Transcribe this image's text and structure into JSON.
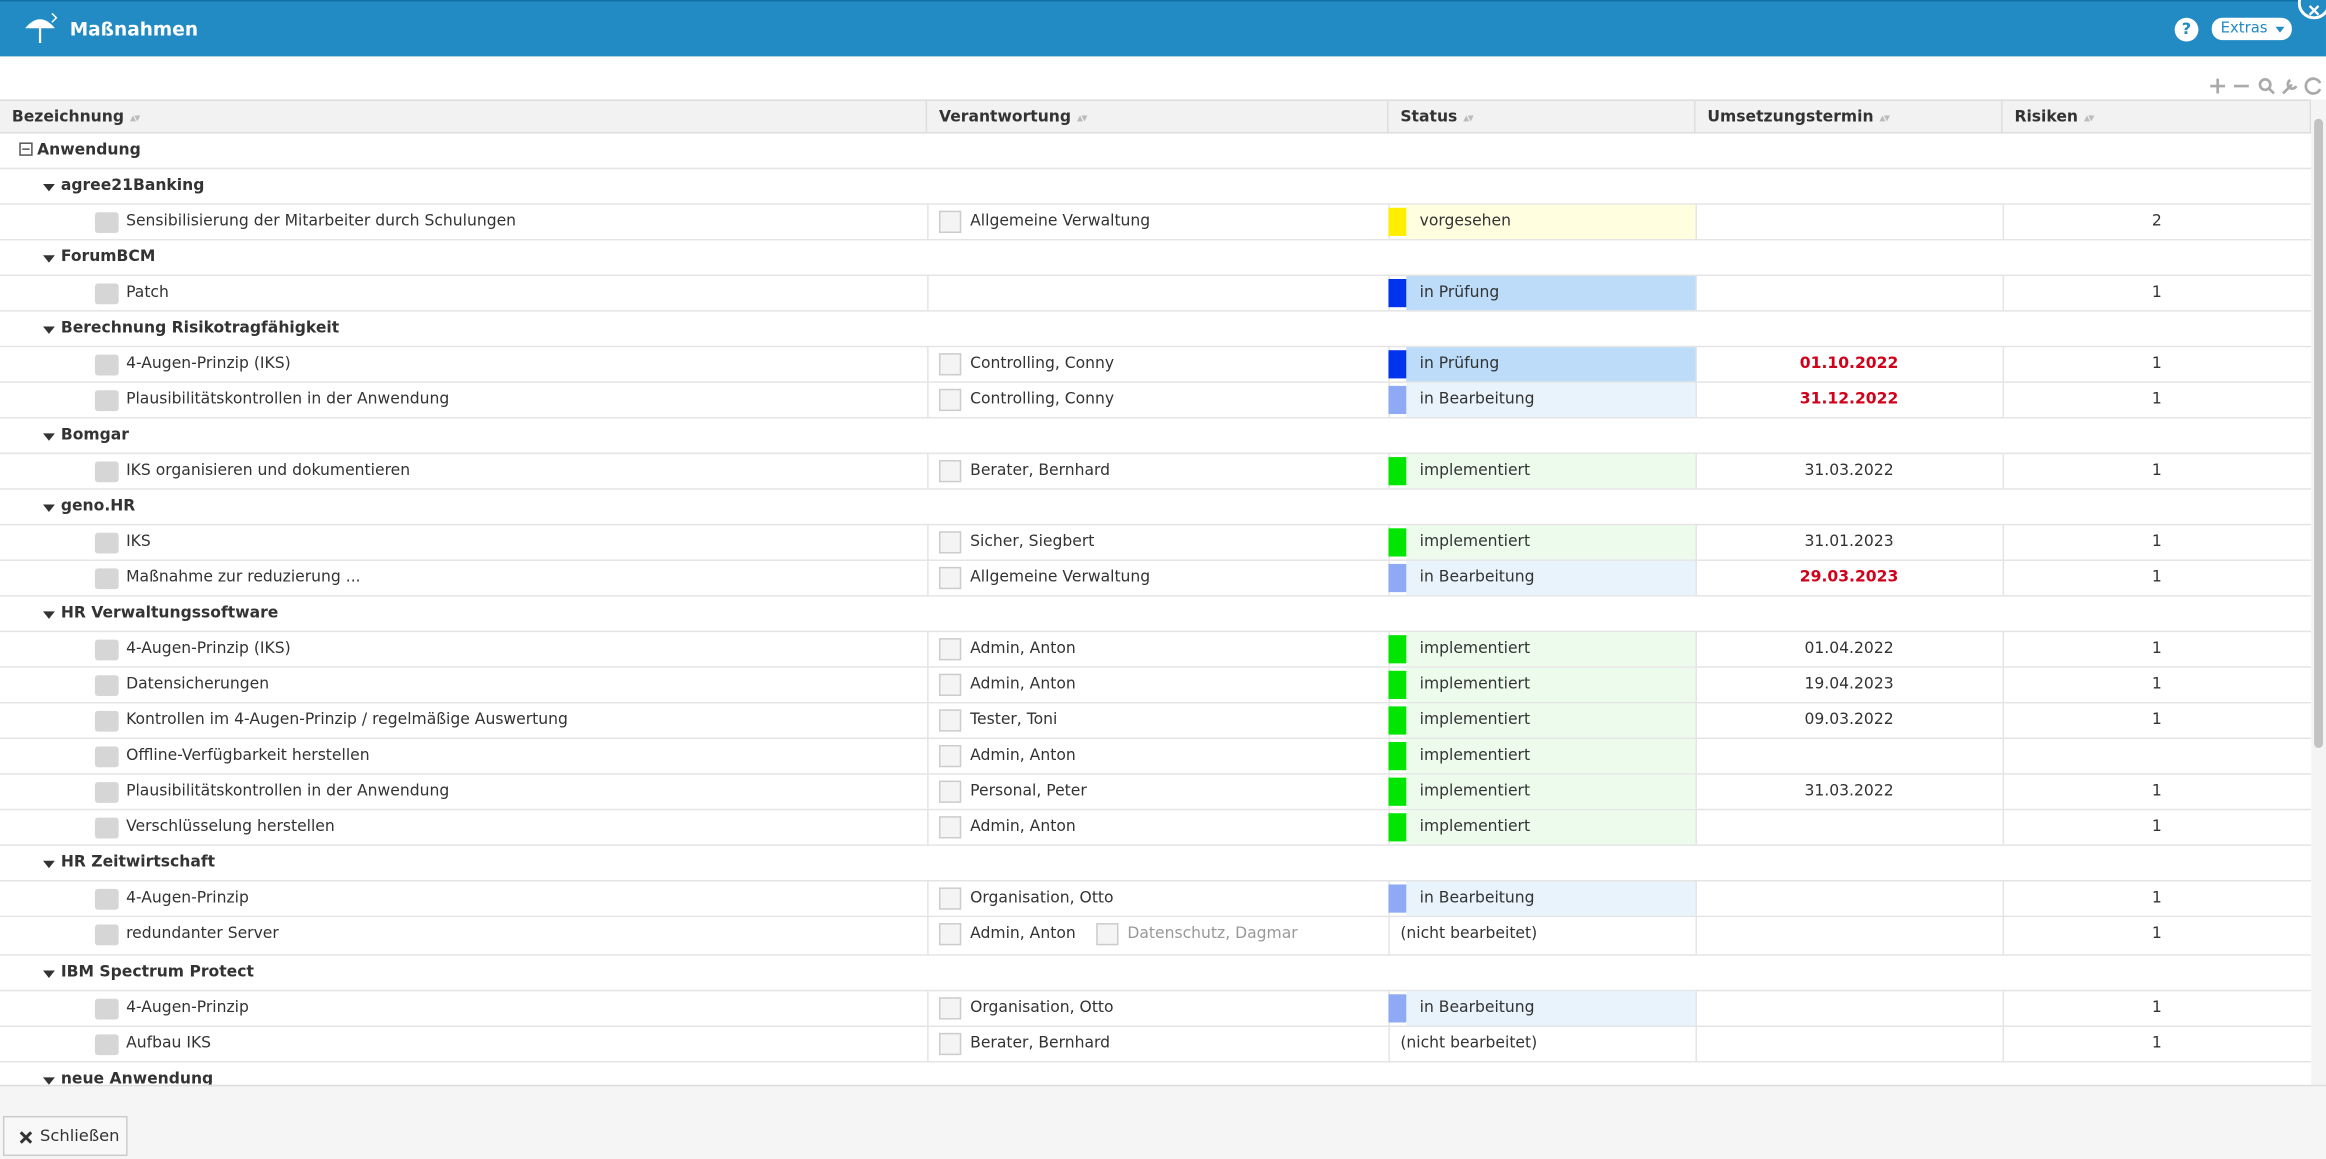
{
  "header": {
    "title": "Maßnahmen",
    "help": "?",
    "extras": "Extras"
  },
  "table": {
    "columns": [
      "Bezeichnung",
      "Verantwortung",
      "Status",
      "Umsetzungstermin",
      "Risiken"
    ],
    "root": "Anwendung",
    "groups": [
      {
        "name": "agree21Banking",
        "rows": [
          {
            "name": "Sensibilisierung der Mitarbeiter durch Schulungen",
            "owners": [
              {
                "name": "Allgemeine Verwaltung",
                "icon": "group"
              }
            ],
            "status": "vorgesehen",
            "status_color": "#ffee00",
            "status_bg": "#ffffe0",
            "risks": 2
          }
        ]
      },
      {
        "name": "ForumBCM",
        "rows": [
          {
            "name": "Patch",
            "owners": [],
            "status": "in Prüfung",
            "status_color": "#0033ee",
            "status_bg": "#bcdcfa",
            "risks": 1
          }
        ]
      },
      {
        "name": "Berechnung Risikotragfähigkeit",
        "rows": [
          {
            "name": "4-Augen-Prinzip (IKS)",
            "owners": [
              {
                "name": "Controlling, Conny",
                "icon": "person"
              }
            ],
            "status": "in Prüfung",
            "status_color": "#0033ee",
            "status_bg": "#bcdcfa",
            "date": "01.10.2022",
            "date_color": "#d0021b",
            "risks": 1
          },
          {
            "name": "Plausibilitätskontrollen in der Anwendung",
            "owners": [
              {
                "name": "Controlling, Conny",
                "icon": "person"
              }
            ],
            "status": "in Bearbeitung",
            "status_color": "#8eaaf5",
            "status_bg": "#e8f3fc",
            "date": "31.12.2022",
            "date_color": "#d0021b",
            "risks": 1
          }
        ]
      },
      {
        "name": "Bomgar",
        "rows": [
          {
            "name": "IKS organisieren und dokumentieren",
            "owners": [
              {
                "name": "Berater, Bernhard",
                "icon": "person"
              }
            ],
            "status": "implementiert",
            "status_color": "#00e600",
            "status_bg": "#ecfbec",
            "date": "31.03.2022",
            "risks": 1
          }
        ]
      },
      {
        "name": "geno.HR",
        "rows": [
          {
            "name": "IKS",
            "owners": [
              {
                "name": "Sicher, Siegbert",
                "icon": "person"
              }
            ],
            "status": "implementiert",
            "status_color": "#00e600",
            "status_bg": "#ecfbec",
            "date": "31.01.2023",
            "risks": 1
          },
          {
            "name": "Maßnahme zur reduzierung ...",
            "owners": [
              {
                "name": "Allgemeine Verwaltung",
                "icon": "group"
              }
            ],
            "status": "in Bearbeitung",
            "status_color": "#8eaaf5",
            "status_bg": "#e8f3fc",
            "date": "29.03.2023",
            "date_color": "#d0021b",
            "risks": 1
          }
        ]
      },
      {
        "name": "HR Verwaltungssoftware",
        "rows": [
          {
            "name": "4-Augen-Prinzip (IKS)",
            "owners": [
              {
                "name": "Admin, Anton",
                "icon": "person"
              }
            ],
            "status": "implementiert",
            "status_color": "#00e600",
            "status_bg": "#ecfbec",
            "date": "01.04.2022",
            "risks": 1
          },
          {
            "name": "Datensicherungen",
            "owners": [
              {
                "name": "Admin, Anton",
                "icon": "person"
              }
            ],
            "status": "implementiert",
            "status_color": "#00e600",
            "status_bg": "#ecfbec",
            "date": "19.04.2023",
            "risks": 1
          },
          {
            "name": "Kontrollen im 4-Augen-Prinzip / regelmäßige Auswertung",
            "owners": [
              {
                "name": "Tester, Toni",
                "icon": "person"
              }
            ],
            "status": "implementiert",
            "status_color": "#00e600",
            "status_bg": "#ecfbec",
            "date": "09.03.2022",
            "risks": 1
          },
          {
            "name": "Offline-Verfügbarkeit herstellen",
            "owners": [
              {
                "name": "Admin, Anton",
                "icon": "person"
              }
            ],
            "status": "implementiert",
            "status_color": "#00e600",
            "status_bg": "#ecfbec"
          },
          {
            "name": "Plausibilitätskontrollen in der Anwendung",
            "owners": [
              {
                "name": "Personal, Peter",
                "icon": "person"
              }
            ],
            "status": "implementiert",
            "status_color": "#00e600",
            "status_bg": "#ecfbec",
            "date": "31.03.2022",
            "risks": 1
          },
          {
            "name": "Verschlüsselung herstellen",
            "owners": [
              {
                "name": "Admin, Anton",
                "icon": "person"
              }
            ],
            "status": "implementiert",
            "status_color": "#00e600",
            "status_bg": "#ecfbec",
            "risks": 1
          }
        ]
      },
      {
        "name": "HR Zeitwirtschaft",
        "rows": [
          {
            "name": "4-Augen-Prinzip",
            "owners": [
              {
                "name": "Organisation, Otto",
                "icon": "person"
              }
            ],
            "status": "in Bearbeitung",
            "status_color": "#8eaaf5",
            "status_bg": "#e8f3fc",
            "risks": 1
          },
          {
            "name": "redundanter Server",
            "owners": [
              {
                "name": "Admin, Anton",
                "icon": "person"
              },
              {
                "name": "Datenschutz, Dagmar",
                "icon": "person",
                "muted": true
              }
            ],
            "status": "(nicht bearbeitet)",
            "risks": 1
          }
        ]
      },
      {
        "name": "IBM Spectrum Protect",
        "rows": [
          {
            "name": "4-Augen-Prinzip",
            "owners": [
              {
                "name": "Organisation, Otto",
                "icon": "person"
              }
            ],
            "status": "in Bearbeitung",
            "status_color": "#8eaaf5",
            "status_bg": "#e8f3fc",
            "risks": 1
          },
          {
            "name": "Aufbau IKS",
            "owners": [
              {
                "name": "Berater, Bernhard",
                "icon": "person"
              }
            ],
            "status": "(nicht bearbeitet)",
            "risks": 1
          }
        ]
      },
      {
        "name": "neue Anwendung",
        "rows": []
      }
    ]
  },
  "footer": {
    "close": "Schließen"
  }
}
